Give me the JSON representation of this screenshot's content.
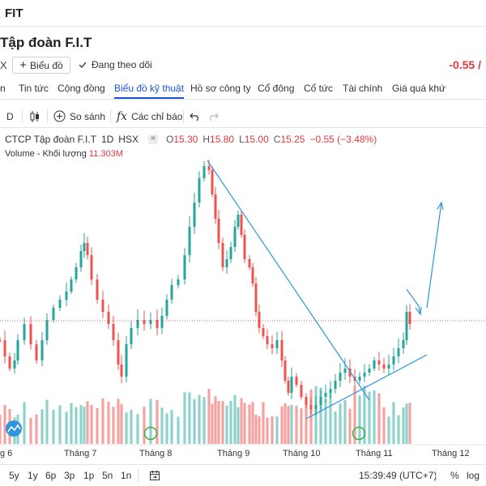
{
  "header": {
    "ticker": "FIT"
  },
  "company": {
    "name": "Tập đoàn F.I.T"
  },
  "actions": {
    "x_mark": "X",
    "chart_button": "Biểu đồ",
    "follow_label": "Đang theo dõi",
    "change": "-0.55 /"
  },
  "tabs": [
    {
      "label": "n"
    },
    {
      "label": "Tin tức"
    },
    {
      "label": "Cộng đồng"
    },
    {
      "label": "Biểu đồ kỹ thuật"
    },
    {
      "label": "Hồ sơ công ty"
    },
    {
      "label": "Cổ đông"
    },
    {
      "label": "Cổ tức"
    },
    {
      "label": "Tài chính"
    },
    {
      "label": "Giá quá khứ"
    }
  ],
  "toolbar": {
    "interval": "D",
    "compare": "So sánh",
    "indicators": "Các chỉ báo"
  },
  "legend": {
    "symbol": "CTCP Tập đoàn F.I.T",
    "interval": "1D",
    "exchange": "HSX",
    "collapse": "=",
    "o_label": "O",
    "o": "15.30",
    "h_label": "H",
    "h": "15.80",
    "l_label": "L",
    "l": "15.00",
    "c_label": "C",
    "c": "15.25",
    "change": "−0.55 (−3.48%)",
    "volume_label": "Volume - Khối lượng",
    "volume_value": "11.303M"
  },
  "chart_data": {
    "type": "candlestick",
    "x_labels": [
      "g 6",
      "Tháng 7",
      "Tháng 8",
      "Tháng 9",
      "Tháng 10",
      "Tháng 11",
      "Tháng 12"
    ],
    "current_close": 15.25,
    "colors": {
      "up": "#26a69a",
      "down": "#ef5350",
      "up_volume": "#8fd2cc",
      "down_volume": "#f5a3a1",
      "trendline": "#2f95dc",
      "price_line": "#ef5350",
      "event_marker": "#3cb043"
    }
  },
  "bottombar": {
    "ranges": [
      "5y",
      "1y",
      "6p",
      "3p",
      "1p",
      "5n",
      "1n"
    ],
    "time": "15:39:49 (UTC+7)",
    "percent": "%",
    "log": "log"
  }
}
